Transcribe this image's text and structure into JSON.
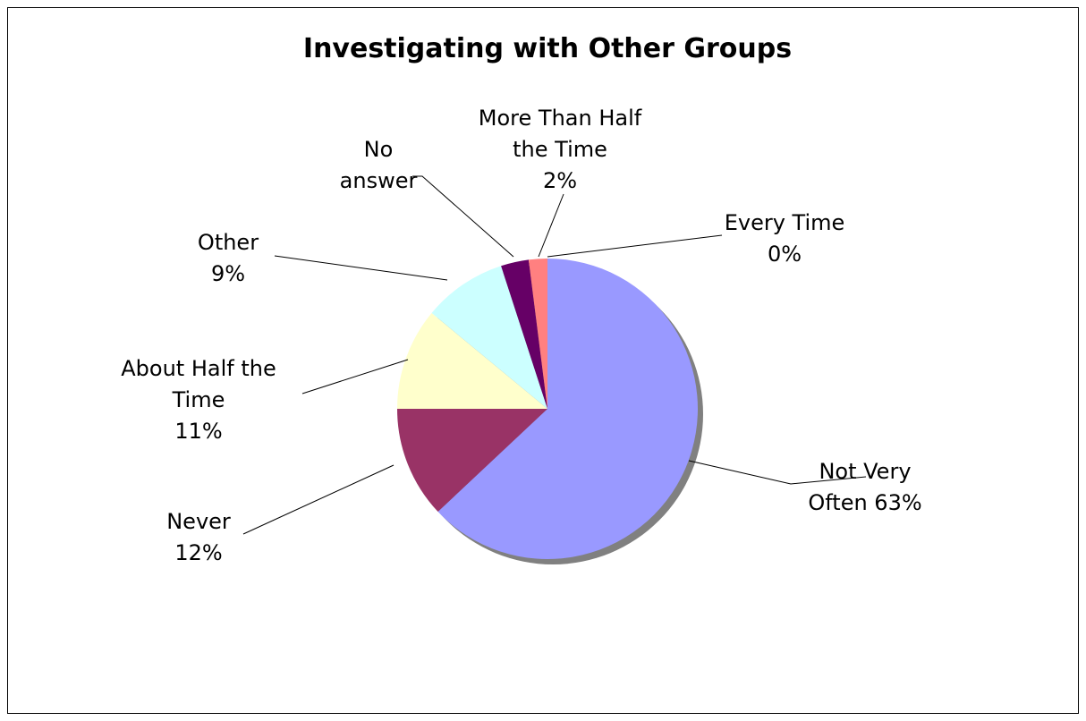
{
  "chart_data": {
    "type": "pie",
    "title": "Investigating with Other Groups",
    "slices": [
      {
        "category": "Not Very Often",
        "value": 63,
        "color": "#9999ff",
        "label_lines": [
          "Not Very",
          "Often 63%"
        ]
      },
      {
        "category": "Never",
        "value": 12,
        "color": "#993366",
        "label_lines": [
          "Never",
          "12%"
        ]
      },
      {
        "category": "About Half the Time",
        "value": 11,
        "color": "#ffffcc",
        "label_lines": [
          "About Half the",
          "Time",
          "11%"
        ]
      },
      {
        "category": "Other",
        "value": 9,
        "color": "#ccffff",
        "label_lines": [
          "Other",
          "9%"
        ]
      },
      {
        "category": "No answer",
        "value": 3,
        "color": "#660066",
        "label_lines": [
          "No",
          "answer"
        ]
      },
      {
        "category": "More Than Half the Time",
        "value": 2,
        "color": "#ff8080",
        "label_lines": [
          "More Than Half",
          "the Time",
          "2%"
        ]
      },
      {
        "category": "Every Time",
        "value": 0,
        "color": "#0066cc",
        "label_lines": [
          "Every Time",
          "0%"
        ]
      }
    ],
    "start_angle_deg": 0,
    "direction": "clockwise",
    "shadow": true,
    "legend": "none"
  }
}
